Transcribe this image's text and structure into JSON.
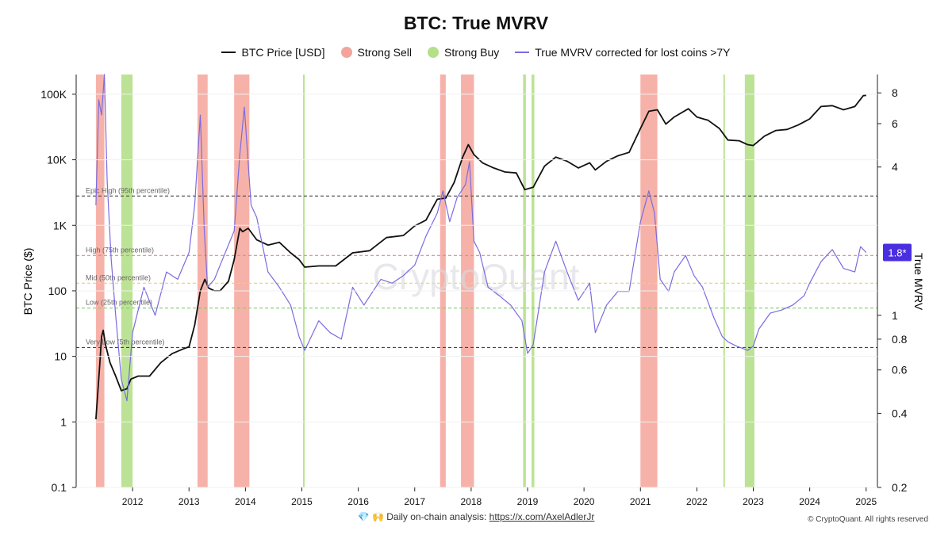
{
  "chart_data": {
    "type": "line",
    "title": "BTC: True MVRV",
    "legend": {
      "placement": "top-center",
      "items": [
        {
          "label": "BTC Price [USD]",
          "color": "#111111",
          "kind": "line"
        },
        {
          "label": "Strong Sell",
          "color": "#f4a49a",
          "kind": "dot"
        },
        {
          "label": "Strong Buy",
          "color": "#b5e08a",
          "kind": "dot"
        },
        {
          "label": "True MVRV corrected for lost coins >7Y",
          "color": "#7b6be0",
          "kind": "line"
        }
      ]
    },
    "ylabel": "BTC Price ($)",
    "ylabel_right": "True MVRV",
    "y_scale": "log",
    "y_ticks": [
      "100K",
      "10K",
      "1K",
      "100",
      "10",
      "1",
      "0.1"
    ],
    "y_tick_values": [
      100000,
      10000,
      1000,
      100,
      10,
      1,
      0.1
    ],
    "y2_scale": "log",
    "y2_ticks": [
      "8",
      "6",
      "4",
      "1",
      "0.8",
      "0.6",
      "0.4",
      "0.2"
    ],
    "y2_tick_values": [
      8,
      6,
      4,
      1,
      0.8,
      0.6,
      0.4,
      0.2
    ],
    "x_ticks": [
      "2012",
      "2013",
      "2014",
      "2015",
      "2016",
      "2017",
      "2018",
      "2019",
      "2020",
      "2021",
      "2022",
      "2023",
      "2024",
      "2025"
    ],
    "x_tick_values": [
      2012,
      2013,
      2014,
      2015,
      2016,
      2017,
      2018,
      2019,
      2020,
      2021,
      2022,
      2023,
      2024,
      2025
    ],
    "x_range": [
      2011.0,
      2025.2
    ],
    "current_value_label": "1.8*",
    "current_value": 1.8,
    "threshold_lines": [
      {
        "label": "Epic High (95th percentile)",
        "mvrv": 3.05,
        "color": "#444444"
      },
      {
        "label": "High (75th percentile)",
        "mvrv": 1.75,
        "color": "#e58a7a"
      },
      {
        "label": "Mid (50th percentile)",
        "mvrv": 1.35,
        "color": "#f0cf6a"
      },
      {
        "label": "Low (25th percentile)",
        "mvrv": 1.07,
        "color": "#7fcf6a"
      },
      {
        "label": "Very Low (5th percentile)",
        "mvrv": 0.74,
        "color": "#444444"
      }
    ],
    "strong_sell_zones": [
      [
        2011.35,
        2011.5
      ],
      [
        2013.15,
        2013.33
      ],
      [
        2013.8,
        2014.07
      ],
      [
        2017.45,
        2017.55
      ],
      [
        2017.82,
        2018.05
      ],
      [
        2021.0,
        2021.3
      ]
    ],
    "strong_buy_zones": [
      [
        2011.8,
        2012.0
      ],
      [
        2015.02,
        2015.05
      ],
      [
        2018.92,
        2018.97
      ],
      [
        2019.07,
        2019.12
      ],
      [
        2022.47,
        2022.49
      ],
      [
        2022.85,
        2023.02
      ]
    ],
    "series": [
      {
        "name": "BTC Price [USD]",
        "color": "#111111",
        "x": [
          2011.35,
          2011.42,
          2011.45,
          2011.48,
          2011.52,
          2011.6,
          2011.7,
          2011.8,
          2011.9,
          2011.97,
          2012.1,
          2012.3,
          2012.5,
          2012.7,
          2012.9,
          2013.0,
          2013.1,
          2013.2,
          2013.28,
          2013.35,
          2013.45,
          2013.55,
          2013.7,
          2013.8,
          2013.9,
          2013.95,
          2014.05,
          2014.2,
          2014.4,
          2014.6,
          2014.8,
          2014.95,
          2015.05,
          2015.3,
          2015.6,
          2015.9,
          2016.2,
          2016.5,
          2016.8,
          2017.0,
          2017.2,
          2017.4,
          2017.55,
          2017.7,
          2017.85,
          2017.95,
          2018.05,
          2018.2,
          2018.4,
          2018.6,
          2018.8,
          2018.95,
          2019.1,
          2019.3,
          2019.5,
          2019.7,
          2019.9,
          2020.1,
          2020.2,
          2020.4,
          2020.6,
          2020.8,
          2021.0,
          2021.15,
          2021.3,
          2021.45,
          2021.6,
          2021.85,
          2022.0,
          2022.2,
          2022.4,
          2022.55,
          2022.75,
          2022.9,
          2023.0,
          2023.2,
          2023.4,
          2023.6,
          2023.8,
          2024.0,
          2024.2,
          2024.4,
          2024.6,
          2024.8,
          2024.95,
          2025.0
        ],
        "values": [
          1.1,
          8,
          20,
          25,
          15,
          8,
          5,
          3,
          3.2,
          4.5,
          5,
          5,
          8,
          11,
          13,
          14,
          30,
          100,
          150,
          110,
          100,
          100,
          140,
          300,
          900,
          800,
          900,
          600,
          500,
          550,
          380,
          300,
          230,
          240,
          240,
          380,
          410,
          650,
          700,
          980,
          1200,
          2500,
          2600,
          4500,
          11000,
          17000,
          12000,
          9000,
          7500,
          6500,
          6300,
          3500,
          3800,
          8000,
          11000,
          9500,
          7500,
          9000,
          7000,
          9500,
          11500,
          13000,
          30000,
          55000,
          58000,
          35000,
          45000,
          60000,
          45000,
          40000,
          30000,
          20000,
          19500,
          17000,
          16500,
          23000,
          28000,
          29000,
          34000,
          42000,
          65000,
          67000,
          58000,
          65000,
          95000,
          96000
        ]
      },
      {
        "name": "True MVRV corrected for lost coins >7Y",
        "color": "#7b6be0",
        "x": [
          2011.35,
          2011.4,
          2011.45,
          2011.5,
          2011.55,
          2011.62,
          2011.7,
          2011.8,
          2011.9,
          2012.0,
          2012.2,
          2012.4,
          2012.6,
          2012.8,
          2013.0,
          2013.1,
          2013.2,
          2013.27,
          2013.33,
          2013.45,
          2013.6,
          2013.8,
          2013.9,
          2013.98,
          2014.1,
          2014.2,
          2014.4,
          2014.6,
          2014.8,
          2014.95,
          2015.05,
          2015.3,
          2015.5,
          2015.7,
          2015.9,
          2016.1,
          2016.4,
          2016.6,
          2016.8,
          2017.0,
          2017.2,
          2017.4,
          2017.5,
          2017.62,
          2017.75,
          2017.9,
          2017.97,
          2018.05,
          2018.15,
          2018.3,
          2018.5,
          2018.7,
          2018.9,
          2019.0,
          2019.1,
          2019.3,
          2019.5,
          2019.7,
          2019.9,
          2020.1,
          2020.2,
          2020.4,
          2020.6,
          2020.8,
          2021.0,
          2021.15,
          2021.25,
          2021.35,
          2021.5,
          2021.6,
          2021.8,
          2021.95,
          2022.1,
          2022.3,
          2022.45,
          2022.55,
          2022.7,
          2022.9,
          2023.0,
          2023.1,
          2023.3,
          2023.5,
          2023.7,
          2023.9,
          2024.0,
          2024.2,
          2024.4,
          2024.6,
          2024.8,
          2024.9,
          2025.0
        ],
        "values": [
          2.8,
          7.5,
          6.5,
          9.5,
          3.5,
          1.7,
          1.0,
          0.55,
          0.45,
          0.85,
          1.3,
          1.0,
          1.5,
          1.4,
          1.8,
          2.8,
          6.5,
          2.2,
          1.3,
          1.4,
          1.7,
          2.2,
          4.5,
          7.0,
          2.8,
          2.5,
          1.5,
          1.3,
          1.1,
          0.82,
          0.72,
          0.95,
          0.85,
          0.8,
          1.3,
          1.1,
          1.4,
          1.35,
          1.45,
          1.6,
          2.1,
          2.6,
          3.2,
          2.4,
          3.0,
          3.4,
          4.2,
          2.0,
          1.8,
          1.3,
          1.2,
          1.1,
          0.95,
          0.7,
          0.76,
          1.5,
          2.0,
          1.5,
          1.15,
          1.35,
          0.85,
          1.1,
          1.25,
          1.25,
          2.4,
          3.2,
          2.6,
          1.4,
          1.25,
          1.5,
          1.75,
          1.45,
          1.3,
          0.98,
          0.82,
          0.78,
          0.75,
          0.72,
          0.75,
          0.88,
          1.02,
          1.05,
          1.1,
          1.2,
          1.35,
          1.65,
          1.85,
          1.55,
          1.5,
          1.9,
          1.8
        ]
      }
    ],
    "watermark": "CryptoQuant"
  },
  "footer": {
    "diamond_glyph": "💎",
    "hands_glyph": "🙌",
    "analysis_label": "Daily on-chain analysis:",
    "analysis_link": "https://x.com/AxelAdlerJr",
    "copyright": "© CryptoQuant. All rights reserved"
  }
}
